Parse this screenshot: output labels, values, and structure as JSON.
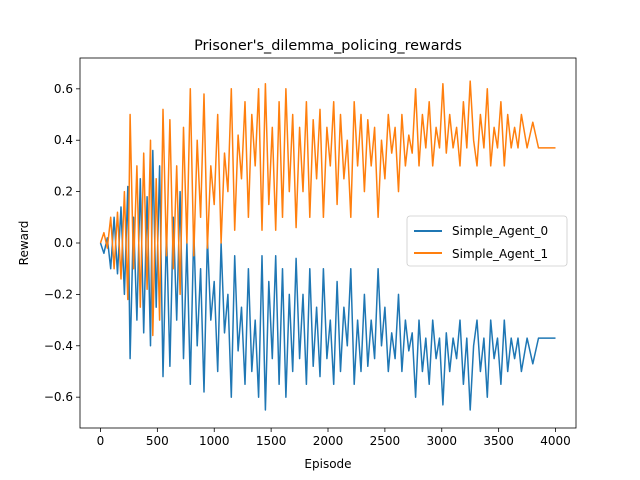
{
  "chart_data": {
    "type": "line",
    "title": "Prisoner's_dilemma_policing_rewards",
    "xlabel": "Episode",
    "ylabel": "Reward",
    "xlim": [
      -180,
      4180
    ],
    "ylim": [
      -0.72,
      0.72
    ],
    "xticks": [
      0,
      500,
      1000,
      1500,
      2000,
      2500,
      3000,
      3500,
      4000
    ],
    "yticks": [
      -0.6,
      -0.4,
      -0.2,
      0.0,
      0.2,
      0.4,
      0.6
    ],
    "xtick_labels": [
      "0",
      "500",
      "1000",
      "1500",
      "2000",
      "2500",
      "3000",
      "3500",
      "4000"
    ],
    "ytick_labels": [
      "−0.6",
      "−0.4",
      "−0.2",
      "0.0",
      "0.2",
      "0.4",
      "0.6"
    ],
    "grid": false,
    "legend_position": "center-right",
    "series": [
      {
        "name": "Simple_Agent_0",
        "color": "#1f77b4",
        "x": [
          0,
          30,
          60,
          90,
          120,
          150,
          180,
          210,
          240,
          260,
          290,
          320,
          350,
          380,
          410,
          440,
          460,
          490,
          520,
          550,
          580,
          610,
          640,
          670,
          700,
          730,
          760,
          790,
          820,
          850,
          880,
          910,
          940,
          970,
          1000,
          1030,
          1060,
          1090,
          1120,
          1150,
          1180,
          1210,
          1240,
          1270,
          1300,
          1330,
          1360,
          1390,
          1420,
          1450,
          1480,
          1510,
          1540,
          1570,
          1600,
          1630,
          1660,
          1690,
          1720,
          1750,
          1780,
          1810,
          1840,
          1870,
          1900,
          1930,
          1960,
          1990,
          2020,
          2050,
          2080,
          2110,
          2140,
          2170,
          2200,
          2230,
          2260,
          2290,
          2320,
          2350,
          2380,
          2410,
          2440,
          2470,
          2500,
          2530,
          2560,
          2590,
          2620,
          2650,
          2680,
          2710,
          2740,
          2770,
          2800,
          2830,
          2860,
          2890,
          2920,
          2950,
          2980,
          3010,
          3040,
          3070,
          3100,
          3130,
          3160,
          3190,
          3220,
          3250,
          3280,
          3310,
          3340,
          3370,
          3400,
          3430,
          3460,
          3490,
          3520,
          3550,
          3580,
          3610,
          3640,
          3670,
          3700,
          3750,
          3800,
          3850,
          3900,
          4000
        ],
        "values": [
          0.0,
          -0.04,
          0.02,
          -0.1,
          0.1,
          -0.12,
          0.14,
          -0.2,
          0.22,
          -0.45,
          0.1,
          -0.3,
          0.25,
          -0.35,
          0.18,
          -0.4,
          0.36,
          -0.25,
          0.3,
          -0.52,
          0.05,
          -0.48,
          0.1,
          -0.3,
          0.2,
          -0.45,
          0.0,
          -0.55,
          0.05,
          -0.4,
          -0.1,
          -0.58,
          0.02,
          -0.3,
          -0.15,
          -0.5,
          0.0,
          -0.35,
          -0.2,
          -0.6,
          -0.05,
          -0.42,
          -0.25,
          -0.55,
          -0.1,
          -0.5,
          -0.3,
          -0.6,
          -0.05,
          -0.65,
          -0.15,
          -0.45,
          -0.05,
          -0.55,
          -0.1,
          -0.6,
          -0.2,
          -0.5,
          -0.06,
          -0.45,
          -0.2,
          -0.55,
          -0.1,
          -0.48,
          -0.25,
          -0.52,
          -0.1,
          -0.45,
          -0.3,
          -0.55,
          -0.15,
          -0.5,
          -0.25,
          -0.4,
          -0.1,
          -0.55,
          -0.3,
          -0.5,
          -0.2,
          -0.48,
          -0.3,
          -0.45,
          -0.1,
          -0.4,
          -0.25,
          -0.5,
          -0.35,
          -0.45,
          -0.2,
          -0.5,
          -0.3,
          -0.42,
          -0.35,
          -0.6,
          -0.3,
          -0.5,
          -0.37,
          -0.55,
          -0.3,
          -0.45,
          -0.37,
          -0.63,
          -0.35,
          -0.5,
          -0.37,
          -0.45,
          -0.3,
          -0.55,
          -0.37,
          -0.65,
          -0.4,
          -0.3,
          -0.5,
          -0.37,
          -0.6,
          -0.3,
          -0.45,
          -0.37,
          -0.55,
          -0.3,
          -0.5,
          -0.37,
          -0.45,
          -0.37,
          -0.5,
          -0.37,
          -0.47,
          -0.37,
          -0.37,
          -0.37
        ],
        "labels_note": ""
      },
      {
        "name": "Simple_Agent_1",
        "color": "#ff7f0e",
        "x": [
          0,
          30,
          60,
          90,
          120,
          150,
          180,
          210,
          240,
          260,
          290,
          320,
          350,
          380,
          410,
          440,
          460,
          490,
          520,
          550,
          580,
          610,
          640,
          670,
          700,
          730,
          760,
          790,
          820,
          850,
          880,
          910,
          940,
          970,
          1000,
          1030,
          1060,
          1090,
          1120,
          1150,
          1180,
          1210,
          1240,
          1270,
          1300,
          1330,
          1360,
          1390,
          1420,
          1450,
          1480,
          1510,
          1540,
          1570,
          1600,
          1630,
          1660,
          1690,
          1720,
          1750,
          1780,
          1810,
          1840,
          1870,
          1900,
          1930,
          1960,
          1990,
          2020,
          2050,
          2080,
          2110,
          2140,
          2170,
          2200,
          2230,
          2260,
          2290,
          2320,
          2350,
          2380,
          2410,
          2440,
          2470,
          2500,
          2530,
          2560,
          2590,
          2620,
          2650,
          2680,
          2710,
          2740,
          2770,
          2800,
          2830,
          2860,
          2890,
          2920,
          2950,
          2980,
          3010,
          3040,
          3070,
          3100,
          3130,
          3160,
          3190,
          3220,
          3250,
          3280,
          3310,
          3340,
          3370,
          3400,
          3430,
          3460,
          3490,
          3520,
          3550,
          3580,
          3610,
          3640,
          3670,
          3700,
          3750,
          3800,
          3850,
          3900,
          4000
        ],
        "values": [
          0.0,
          0.04,
          -0.02,
          0.1,
          -0.1,
          0.12,
          -0.14,
          0.2,
          -0.22,
          0.5,
          -0.1,
          0.3,
          -0.25,
          0.35,
          -0.18,
          0.4,
          -0.36,
          0.25,
          -0.3,
          0.52,
          -0.05,
          0.48,
          -0.1,
          0.3,
          -0.2,
          0.45,
          0.0,
          0.6,
          -0.05,
          0.4,
          0.1,
          0.58,
          -0.02,
          0.3,
          0.15,
          0.5,
          0.0,
          0.35,
          0.2,
          0.6,
          0.05,
          0.42,
          0.25,
          0.55,
          0.1,
          0.5,
          0.3,
          0.6,
          0.05,
          0.62,
          0.15,
          0.45,
          0.05,
          0.55,
          0.1,
          0.6,
          0.2,
          0.5,
          0.06,
          0.45,
          0.2,
          0.55,
          0.1,
          0.48,
          0.25,
          0.52,
          0.1,
          0.45,
          0.3,
          0.55,
          0.15,
          0.5,
          0.25,
          0.4,
          0.1,
          0.55,
          0.3,
          0.5,
          0.2,
          0.48,
          0.3,
          0.45,
          0.1,
          0.4,
          0.25,
          0.5,
          0.35,
          0.45,
          0.2,
          0.5,
          0.3,
          0.42,
          0.35,
          0.6,
          0.3,
          0.5,
          0.37,
          0.55,
          0.3,
          0.45,
          0.37,
          0.62,
          0.35,
          0.5,
          0.37,
          0.45,
          0.3,
          0.55,
          0.37,
          0.63,
          0.4,
          0.3,
          0.5,
          0.37,
          0.6,
          0.3,
          0.45,
          0.37,
          0.55,
          0.3,
          0.5,
          0.37,
          0.45,
          0.37,
          0.5,
          0.37,
          0.47,
          0.37,
          0.37,
          0.37
        ]
      }
    ]
  }
}
